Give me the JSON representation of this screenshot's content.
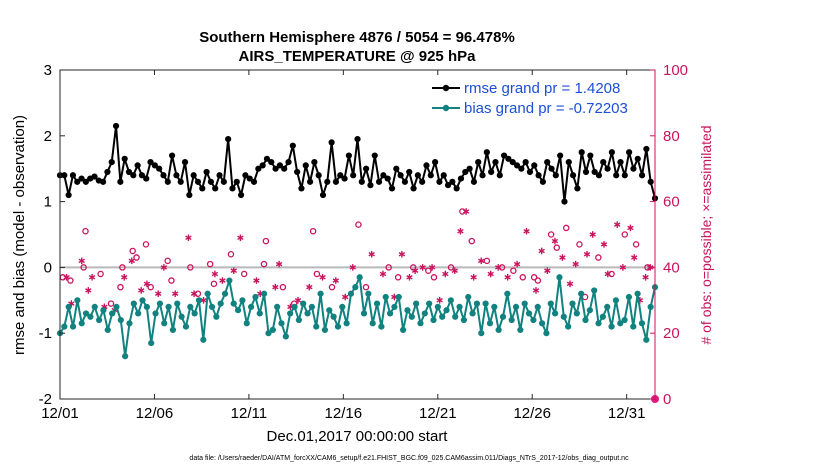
{
  "chart_data": {
    "type": "line",
    "title_line1": "Southern Hemisphere 4876 / 5054 = 96.478%",
    "title_line2": "AIRS_TEMPERATURE @ 925 hPa",
    "xlabel": "Dec.01,2017 00:00:00 start",
    "ylabel": "rmse and bias (model - observation)",
    "ylabel_right": "# of obs: o=possible; ×=assimilated",
    "footer": "data file: /Users/raeder/DAI/ATM_forcXX/CAM6_setup/f.e21.FHIST_BGC.f09_025.CAM6assim.011/Diags_NTrS_2017-12/obs_diag_output.nc",
    "xlim": [
      0,
      31.5
    ],
    "ylim": [
      -2,
      3
    ],
    "ylim_right": [
      0,
      100
    ],
    "x_ticks": [
      0,
      5,
      10,
      15,
      20,
      25,
      30
    ],
    "x_tick_labels": [
      "12/01",
      "12/06",
      "12/11",
      "12/16",
      "12/21",
      "12/26",
      "12/31"
    ],
    "y_ticks": [
      -2,
      -1,
      0,
      1,
      2,
      3
    ],
    "y_tick_labels": [
      "-2",
      "-1",
      "0",
      "1",
      "2",
      "3"
    ],
    "y_right_ticks": [
      0,
      20,
      40,
      60,
      80,
      100
    ],
    "y_right_tick_labels": [
      "0",
      "20",
      "40",
      "60",
      "80",
      "100"
    ],
    "zero_line": 0,
    "series": [
      {
        "name": "rmse",
        "legend": "rmse grand pr = 1.4208",
        "color": "#000000",
        "axis": "left",
        "values": [
          1.4,
          1.4,
          1.1,
          1.4,
          1.3,
          1.35,
          1.3,
          1.35,
          1.38,
          1.32,
          1.3,
          1.45,
          1.6,
          2.15,
          1.3,
          1.65,
          1.45,
          1.4,
          1.55,
          1.4,
          1.35,
          1.6,
          1.55,
          1.5,
          1.4,
          1.3,
          1.7,
          1.4,
          1.3,
          1.6,
          1.1,
          1.4,
          1.3,
          1.2,
          1.45,
          1.3,
          1.2,
          1.4,
          1.3,
          1.95,
          1.2,
          1.3,
          1.1,
          1.4,
          1.35,
          1.3,
          1.5,
          1.55,
          1.65,
          1.6,
          1.5,
          1.55,
          1.5,
          1.6,
          1.85,
          1.45,
          1.2,
          1.55,
          1.3,
          1.6,
          1.4,
          1.1,
          1.3,
          1.9,
          1.3,
          1.4,
          1.35,
          1.7,
          1.4,
          1.95,
          1.3,
          1.5,
          1.25,
          1.7,
          1.3,
          1.4,
          1.35,
          1.2,
          1.5,
          1.4,
          1.3,
          1.45,
          1.2,
          1.4,
          1.3,
          1.55,
          1.4,
          1.6,
          1.3,
          1.4,
          1.25,
          1.3,
          1.2,
          1.35,
          1.45,
          1.5,
          1.3,
          1.6,
          1.4,
          1.75,
          1.45,
          1.6,
          1.4,
          1.7,
          1.65,
          1.6,
          1.55,
          1.5,
          1.6,
          1.45,
          1.55,
          1.4,
          1.3,
          1.6,
          1.5,
          1.4,
          1.7,
          1.0,
          1.6,
          1.4,
          1.2,
          1.75,
          1.45,
          1.7,
          1.45,
          1.4,
          1.6,
          1.5,
          1.75,
          1.4,
          1.6,
          1.4,
          1.75,
          1.5,
          1.65,
          1.4,
          1.8,
          1.3,
          1.05
        ]
      },
      {
        "name": "bias",
        "legend": "bias grand pr = -0.72203",
        "color": "#118280",
        "axis": "left",
        "values": [
          -1.0,
          -0.9,
          -0.6,
          -0.9,
          -0.5,
          -0.85,
          -0.7,
          -0.75,
          -0.6,
          -0.8,
          -0.65,
          -0.95,
          -0.7,
          -0.6,
          -0.8,
          -1.35,
          -0.85,
          -0.55,
          -0.7,
          -0.5,
          -0.6,
          -1.15,
          -0.7,
          -0.55,
          -0.85,
          -0.6,
          -0.95,
          -0.55,
          -0.75,
          -0.9,
          -0.6,
          -0.7,
          -0.5,
          -1.1,
          -0.4,
          -0.6,
          -0.75,
          -0.55,
          -0.4,
          -0.2,
          -0.55,
          -0.65,
          -0.5,
          -0.85,
          -0.6,
          -0.45,
          -0.7,
          -0.4,
          -1.0,
          -0.95,
          -0.6,
          -0.85,
          -1.05,
          -0.7,
          -0.6,
          -0.8,
          -0.55,
          -0.7,
          -0.6,
          -0.9,
          -0.4,
          -0.95,
          -0.65,
          -0.75,
          -0.9,
          -0.6,
          -0.85,
          -0.4,
          -0.3,
          -0.15,
          -0.7,
          -0.4,
          -0.85,
          -0.55,
          -0.9,
          -0.45,
          -0.7,
          -0.6,
          -0.45,
          -0.95,
          -0.65,
          -0.75,
          -0.55,
          -0.85,
          -0.7,
          -0.55,
          -0.8,
          -0.6,
          -0.75,
          -0.65,
          -0.5,
          -0.75,
          -0.6,
          -0.8,
          -0.45,
          -0.7,
          -0.55,
          -1.0,
          -0.55,
          -0.85,
          -0.6,
          -0.95,
          -0.75,
          -0.4,
          -0.8,
          -0.6,
          -0.95,
          -0.55,
          -0.7,
          -0.8,
          -0.6,
          -0.85,
          -1.0,
          -0.55,
          -0.7,
          -0.15,
          -0.75,
          -0.9,
          -0.55,
          -0.7,
          -0.4,
          -0.8,
          -0.65,
          -0.35,
          -0.85,
          -0.75,
          -0.6,
          -0.9,
          -0.5,
          -0.85,
          -0.8,
          -0.45,
          -0.9,
          -0.4,
          -0.85,
          -1.1,
          -0.6,
          -0.3
        ]
      }
    ],
    "obs_possible": [
      {
        "x": 0.15,
        "v": 37
      },
      {
        "x": 0.55,
        "v": 36
      },
      {
        "x": 1.25,
        "v": 40
      },
      {
        "x": 1.35,
        "v": 51
      },
      {
        "x": 2.15,
        "v": 38
      },
      {
        "x": 2.7,
        "v": 29
      },
      {
        "x": 3.2,
        "v": 34
      },
      {
        "x": 3.3,
        "v": 40
      },
      {
        "x": 3.85,
        "v": 45
      },
      {
        "x": 4.05,
        "v": 43
      },
      {
        "x": 4.55,
        "v": 47
      },
      {
        "x": 4.8,
        "v": 34
      },
      {
        "x": 5.7,
        "v": 42
      },
      {
        "x": 5.9,
        "v": 36
      },
      {
        "x": 6.9,
        "v": 40
      },
      {
        "x": 7.3,
        "v": 32
      },
      {
        "x": 7.95,
        "v": 41
      },
      {
        "x": 8.15,
        "v": 35
      },
      {
        "x": 9.05,
        "v": 44
      },
      {
        "x": 9.75,
        "v": 38
      },
      {
        "x": 10.8,
        "v": 41
      },
      {
        "x": 10.9,
        "v": 48
      },
      {
        "x": 11.8,
        "v": 34
      },
      {
        "x": 12.4,
        "v": 29
      },
      {
        "x": 13.4,
        "v": 51
      },
      {
        "x": 13.6,
        "v": 38
      },
      {
        "x": 14.4,
        "v": 34
      },
      {
        "x": 15.8,
        "v": 53
      },
      {
        "x": 16.2,
        "v": 34
      },
      {
        "x": 17.4,
        "v": 40
      },
      {
        "x": 17.9,
        "v": 37
      },
      {
        "x": 18.7,
        "v": 40
      },
      {
        "x": 19.5,
        "v": 39
      },
      {
        "x": 19.8,
        "v": 37
      },
      {
        "x": 20.7,
        "v": 40
      },
      {
        "x": 21.3,
        "v": 57
      },
      {
        "x": 21.8,
        "v": 48
      },
      {
        "x": 22.6,
        "v": 42
      },
      {
        "x": 23.4,
        "v": 40
      },
      {
        "x": 24.0,
        "v": 39
      },
      {
        "x": 24.5,
        "v": 37
      },
      {
        "x": 25.1,
        "v": 37
      },
      {
        "x": 25.3,
        "v": 36
      },
      {
        "x": 26.0,
        "v": 50
      },
      {
        "x": 26.3,
        "v": 46
      },
      {
        "x": 26.8,
        "v": 52
      },
      {
        "x": 27.5,
        "v": 47
      },
      {
        "x": 27.8,
        "v": 31
      },
      {
        "x": 28.5,
        "v": 43
      },
      {
        "x": 29.2,
        "v": 38
      },
      {
        "x": 29.9,
        "v": 50
      },
      {
        "x": 30.5,
        "v": 47
      },
      {
        "x": 31.1,
        "v": 40
      }
    ],
    "obs_assimilated": [
      {
        "x": 0.35,
        "v": 37
      },
      {
        "x": 0.6,
        "v": 29
      },
      {
        "x": 1.15,
        "v": 42
      },
      {
        "x": 1.5,
        "v": 33
      },
      {
        "x": 1.7,
        "v": 37
      },
      {
        "x": 2.35,
        "v": 28
      },
      {
        "x": 2.9,
        "v": 27
      },
      {
        "x": 3.4,
        "v": 37
      },
      {
        "x": 3.8,
        "v": 42
      },
      {
        "x": 4.3,
        "v": 33
      },
      {
        "x": 4.6,
        "v": 35
      },
      {
        "x": 5.2,
        "v": 32
      },
      {
        "x": 5.5,
        "v": 40
      },
      {
        "x": 6.1,
        "v": 32
      },
      {
        "x": 6.8,
        "v": 49
      },
      {
        "x": 7.1,
        "v": 32
      },
      {
        "x": 7.6,
        "v": 30
      },
      {
        "x": 8.2,
        "v": 38
      },
      {
        "x": 8.6,
        "v": 36
      },
      {
        "x": 9.2,
        "v": 39
      },
      {
        "x": 9.55,
        "v": 49
      },
      {
        "x": 10.4,
        "v": 36
      },
      {
        "x": 10.6,
        "v": 32
      },
      {
        "x": 11.4,
        "v": 34
      },
      {
        "x": 11.6,
        "v": 41
      },
      {
        "x": 12.2,
        "v": 28
      },
      {
        "x": 12.6,
        "v": 30
      },
      {
        "x": 13.2,
        "v": 34
      },
      {
        "x": 13.9,
        "v": 37
      },
      {
        "x": 14.6,
        "v": 36
      },
      {
        "x": 15.1,
        "v": 31
      },
      {
        "x": 15.5,
        "v": 40
      },
      {
        "x": 16.5,
        "v": 44
      },
      {
        "x": 17.1,
        "v": 38
      },
      {
        "x": 17.7,
        "v": 31
      },
      {
        "x": 18.1,
        "v": 44
      },
      {
        "x": 18.5,
        "v": 37
      },
      {
        "x": 18.8,
        "v": 39
      },
      {
        "x": 19.2,
        "v": 40
      },
      {
        "x": 19.7,
        "v": 40
      },
      {
        "x": 20.1,
        "v": 30
      },
      {
        "x": 20.4,
        "v": 38
      },
      {
        "x": 20.9,
        "v": 39
      },
      {
        "x": 21.2,
        "v": 51
      },
      {
        "x": 21.5,
        "v": 57
      },
      {
        "x": 21.9,
        "v": 37
      },
      {
        "x": 22.3,
        "v": 42
      },
      {
        "x": 22.8,
        "v": 38
      },
      {
        "x": 23.2,
        "v": 40
      },
      {
        "x": 23.7,
        "v": 37
      },
      {
        "x": 24.2,
        "v": 41
      },
      {
        "x": 24.7,
        "v": 51
      },
      {
        "x": 25.2,
        "v": 33
      },
      {
        "x": 25.5,
        "v": 45
      },
      {
        "x": 25.8,
        "v": 39
      },
      {
        "x": 26.2,
        "v": 48
      },
      {
        "x": 26.6,
        "v": 43
      },
      {
        "x": 27.0,
        "v": 35
      },
      {
        "x": 27.3,
        "v": 41
      },
      {
        "x": 27.9,
        "v": 44
      },
      {
        "x": 28.2,
        "v": 50
      },
      {
        "x": 28.8,
        "v": 47
      },
      {
        "x": 29.0,
        "v": 38
      },
      {
        "x": 29.5,
        "v": 53
      },
      {
        "x": 29.8,
        "v": 40
      },
      {
        "x": 30.2,
        "v": 52
      },
      {
        "x": 30.4,
        "v": 43
      },
      {
        "x": 30.7,
        "v": 30
      },
      {
        "x": 31.0,
        "v": 37
      },
      {
        "x": 31.25,
        "v": 40
      }
    ],
    "obs_edge_marker": {
      "x": 31.5,
      "v": 0,
      "color": "#e0197a"
    },
    "legend_position": "top-right"
  },
  "colors": {
    "rmse": "#000000",
    "bias": "#118280",
    "obs": "#c8155e",
    "legend_text": "#1a4fd6",
    "zero_line": "#b8b8b8"
  }
}
